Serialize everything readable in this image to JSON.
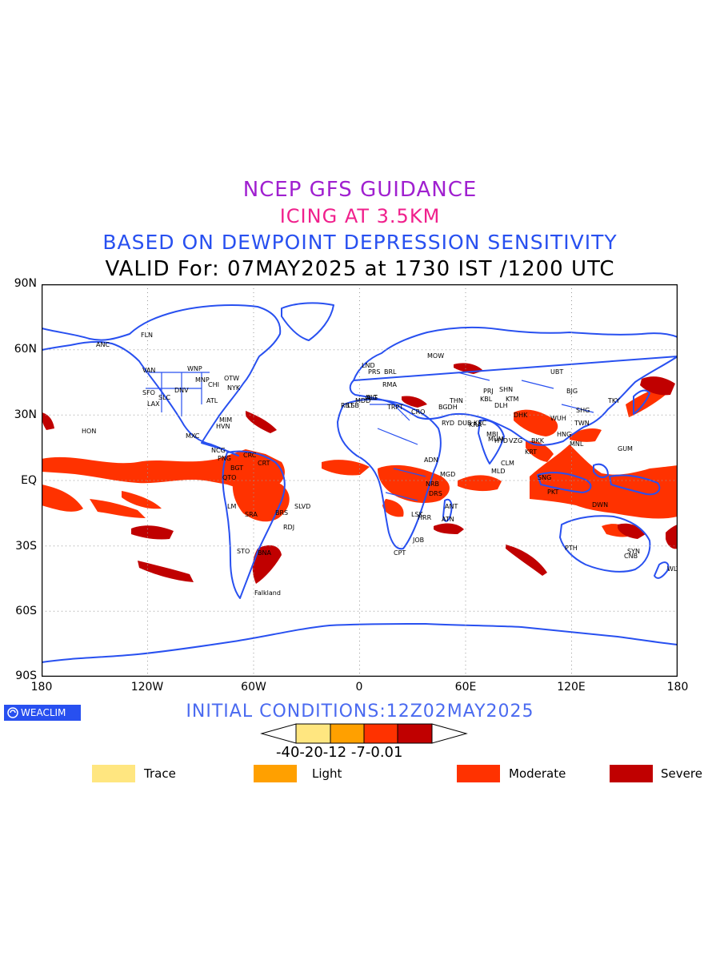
{
  "titles": {
    "line1": "NCEP GFS GUIDANCE",
    "line2": "ICING AT 3.5KM",
    "line3": "BASED ON DEWPOINT DEPRESSION SENSITIVITY",
    "line4": "VALID For: 07MAY2025 at 1730 IST /1200 UTC"
  },
  "axes": {
    "lat_labels": [
      "90N",
      "60N",
      "30N",
      "EQ",
      "30S",
      "60S",
      "90S"
    ],
    "lon_labels": [
      "180",
      "120W",
      "60W",
      "0",
      "60E",
      "120E",
      "180"
    ]
  },
  "logo": {
    "text": "WEACLIM"
  },
  "initial_conditions": "INITIAL CONDITIONS:12Z02MAY2025",
  "colorbar": {
    "labels": "-40-20-12 -7-0.01",
    "colors": [
      "#ffe680",
      "#ffa000",
      "#ff3200",
      "#c00000"
    ]
  },
  "legend": [
    {
      "label": "Trace",
      "color": "#ffe680"
    },
    {
      "label": "Light",
      "color": "#ffa000"
    },
    {
      "label": "Moderate",
      "color": "#ff3200"
    },
    {
      "label": "Severe",
      "color": "#c00000"
    }
  ],
  "map_colors": {
    "coastline": "#2850f0",
    "moderate": "#ff3200",
    "severe": "#c00000"
  },
  "cities": [
    "ANC",
    "FLN",
    "VAN",
    "WNP",
    "MNP",
    "OTW",
    "CHI",
    "NYK",
    "SFO",
    "DNV",
    "ATL",
    "SLC",
    "LAX",
    "HON",
    "MIM",
    "MXC",
    "HVN",
    "NCG",
    "CRC",
    "PNG",
    "BGT",
    "CRT",
    "QTO",
    "LM",
    "SRA",
    "BRS",
    "SLVD",
    "RDJ",
    "STO",
    "BNA",
    "Falkland",
    "ALG",
    "RBT",
    "LSB",
    "MDD",
    "PRS",
    "RMA",
    "LND",
    "MOW",
    "BRL",
    "TRPT",
    "ALT",
    "CRO",
    "BGDH",
    "RYD",
    "DUB",
    "KBL",
    "THN",
    "PRJ",
    "SHN",
    "KRC",
    "DLH",
    "KTM",
    "DHK",
    "MBI",
    "HYD",
    "CLM",
    "MLD",
    "MUM",
    "VZG",
    "BKK",
    "SNG",
    "KRT",
    "MNL",
    "HNG",
    "WUH",
    "BJG",
    "UBT",
    "SHG",
    "TKY",
    "TWN",
    "GUM",
    "PKT",
    "DWN",
    "PTH",
    "SYN",
    "CNB",
    "WLT",
    "ADN",
    "MGD",
    "NRB",
    "DRS",
    "ANT",
    "HRR",
    "ATN",
    "LSK",
    "CPT",
    "KRA",
    "JOB"
  ]
}
